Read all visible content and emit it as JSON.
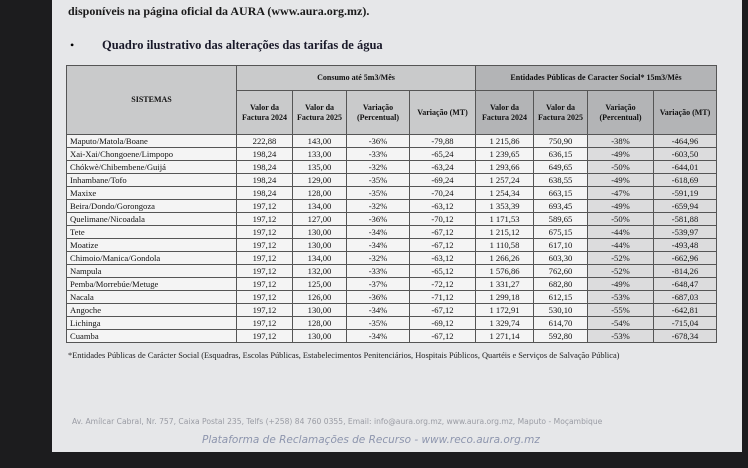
{
  "header": {
    "intro": "disponíveis na página oficial da AURA (www.aura.org.mz).",
    "bullet": "Quadro ilustrativo das alterações das tarifas de água"
  },
  "table": {
    "system_header": "SISTEMAS",
    "group_headers": [
      "Consumo até 5m3/Mês",
      "Entidades Públicas de Caracter Social*   15m3/Mês"
    ],
    "column_headers": [
      "Valor da Factura 2024",
      "Valor da Factura 2025",
      "Variação (Percentual)",
      "Variação (MT)",
      "Valor da Factura 2024",
      "Valor da Factura 2025",
      "Variação (Percentual)",
      "Variação (MT)"
    ],
    "rows": [
      [
        "Maputo/Matola/Boane",
        "222,88",
        "143,00",
        "-36%",
        "-79,88",
        "1 215,86",
        "750,90",
        "-38%",
        "-464,96"
      ],
      [
        "Xai-Xai/Chongoene/Limpopo",
        "198,24",
        "133,00",
        "-33%",
        "-65,24",
        "1 239,65",
        "636,15",
        "-49%",
        "-603,50"
      ],
      [
        "Chókwè/Chibembene/Guijá",
        "198,24",
        "135,00",
        "-32%",
        "-63,24",
        "1 293,66",
        "649,65",
        "-50%",
        "-644,01"
      ],
      [
        "Inhambane/Tofo",
        "198,24",
        "129,00",
        "-35%",
        "-69,24",
        "1 257,24",
        "638,55",
        "-49%",
        "-618,69"
      ],
      [
        "Maxixe",
        "198,24",
        "128,00",
        "-35%",
        "-70,24",
        "1 254,34",
        "663,15",
        "-47%",
        "-591,19"
      ],
      [
        "Beira/Dondo/Gorongoza",
        "197,12",
        "134,00",
        "-32%",
        "-63,12",
        "1 353,39",
        "693,45",
        "-49%",
        "-659,94"
      ],
      [
        "Quelimane/Nicoadala",
        "197,12",
        "127,00",
        "-36%",
        "-70,12",
        "1 171,53",
        "589,65",
        "-50%",
        "-581,88"
      ],
      [
        "Tete",
        "197,12",
        "130,00",
        "-34%",
        "-67,12",
        "1 215,12",
        "675,15",
        "-44%",
        "-539,97"
      ],
      [
        "Moatize",
        "197,12",
        "130,00",
        "-34%",
        "-67,12",
        "1 110,58",
        "617,10",
        "-44%",
        "-493,48"
      ],
      [
        "Chimoio/Manica/Gondola",
        "197,12",
        "134,00",
        "-32%",
        "-63,12",
        "1 266,26",
        "603,30",
        "-52%",
        "-662,96"
      ],
      [
        "Nampula",
        "197,12",
        "132,00",
        "-33%",
        "-65,12",
        "1 576,86",
        "762,60",
        "-52%",
        "-814,26"
      ],
      [
        "Pemba/Morrebúe/Metuge",
        "197,12",
        "125,00",
        "-37%",
        "-72,12",
        "1 331,27",
        "682,80",
        "-49%",
        "-648,47"
      ],
      [
        "Nacala",
        "197,12",
        "126,00",
        "-36%",
        "-71,12",
        "1 299,18",
        "612,15",
        "-53%",
        "-687,03"
      ],
      [
        "Angoche",
        "197,12",
        "130,00",
        "-34%",
        "-67,12",
        "1 172,91",
        "530,10",
        "-55%",
        "-642,81"
      ],
      [
        "Lichinga",
        "197,12",
        "128,00",
        "-35%",
        "-69,12",
        "1 329,74",
        "614,70",
        "-54%",
        "-715,04"
      ],
      [
        "Cuamba",
        "197,12",
        "130,00",
        "-34%",
        "-67,12",
        "1 271,14",
        "592,80",
        "-53%",
        "-678,34"
      ]
    ],
    "footnote": "*Entidades Públicas de Carácter Social (Esquadras, Escolas Públicas, Estabelecimentos Penitenciários, Hospitais Públicos, Quartéis e Serviços de Salvação Pública)"
  },
  "footer": {
    "address": "Av. Amílcar Cabral, Nr. 757, Caixa Postal 235, Telfs (+258) 84 760 0355, Email: info@aura.org.mz, www.aura.org.mz, Maputo - Moçambique",
    "platform": "Plataforma de Reclamações de Recurso - www.reco.aura.org.mz"
  }
}
